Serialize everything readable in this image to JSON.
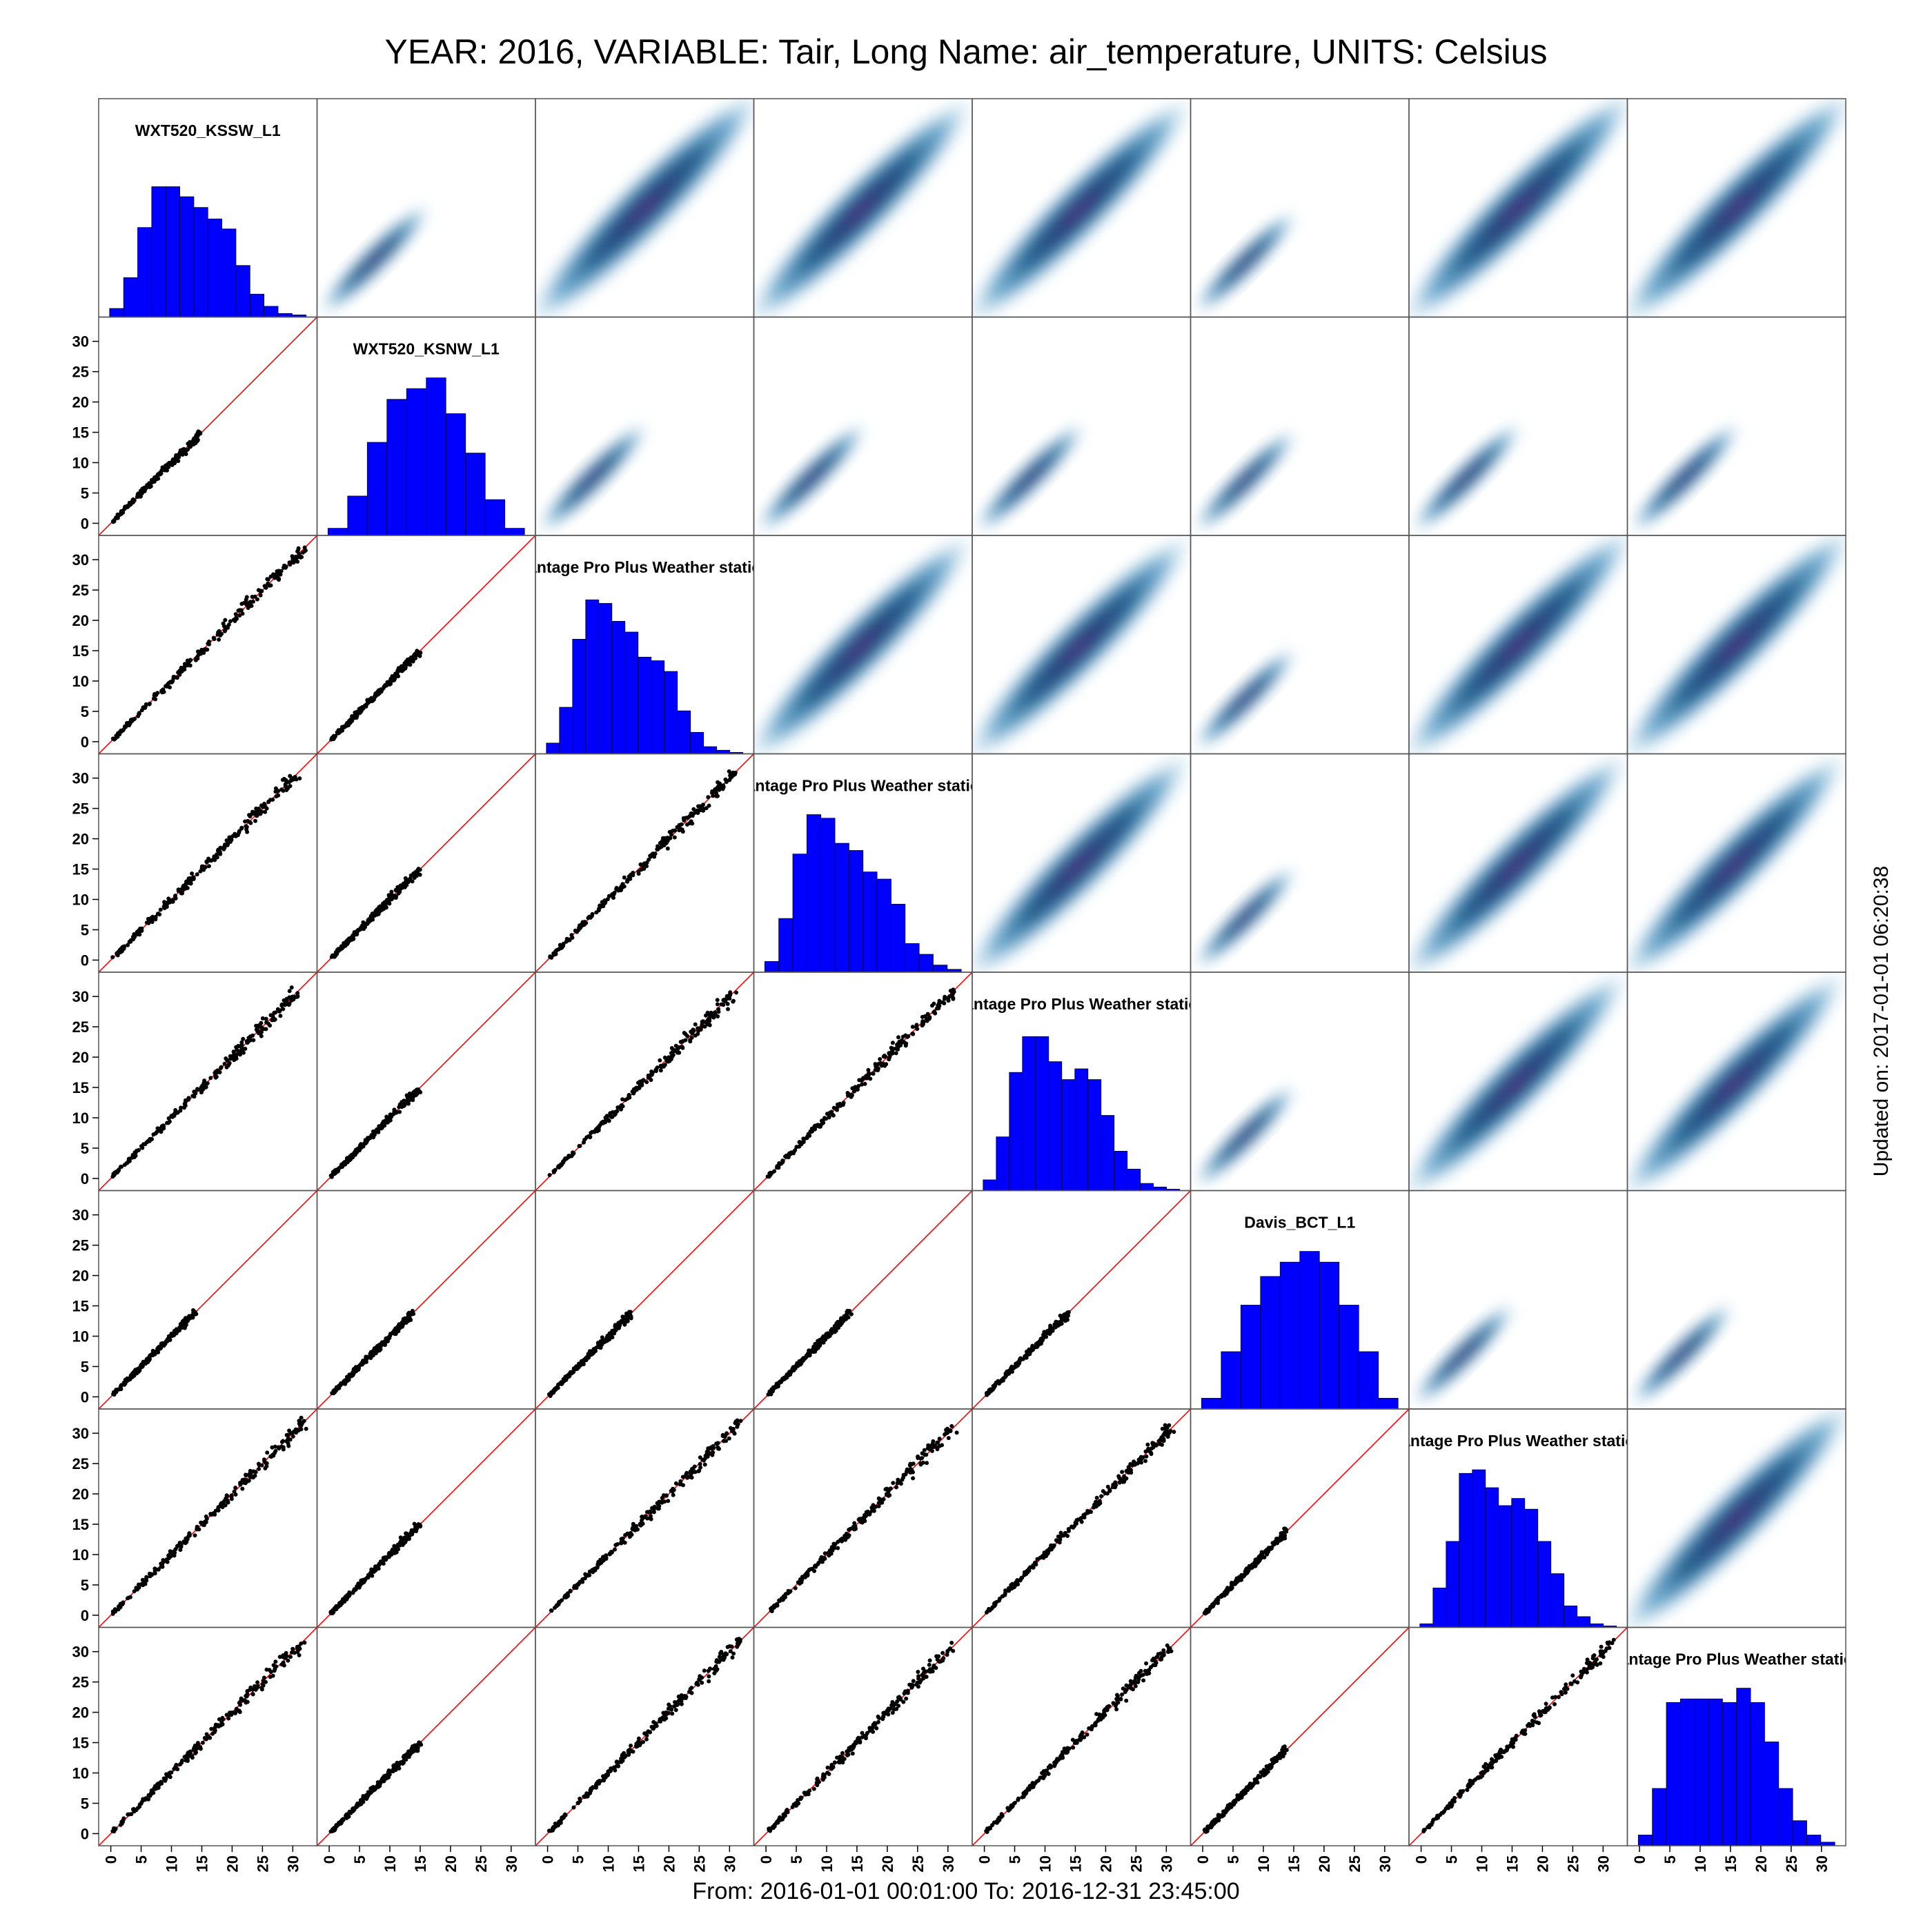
{
  "title": "YEAR: 2016, VARIABLE: Tair, Long Name: air_temperature, UNITS: Celsius",
  "footer": "From: 2016-01-01 00:01:00 To: 2016-12-31 23:45:00",
  "updated": "Updated on: 2017-01-01 06:20:38",
  "chart_data": {
    "type": "scatter",
    "subtype": "scatterplot-matrix",
    "upper_panels": "2d-density",
    "lower_panels": "scatter with 1:1 reference line",
    "diagonal_panels": "histogram",
    "colors": {
      "histogram": "#0000ff",
      "reference_line": "#ff0000",
      "points": "#000000",
      "density": "#1f4e79"
    },
    "axis_range": [
      -2,
      34
    ],
    "ticks": [
      0,
      5,
      10,
      15,
      20,
      25,
      30
    ],
    "variables": [
      {
        "name": "WXT520_KSSW_L1",
        "min": 0,
        "max": 32,
        "hist": [
          1.2,
          5.5,
          12.5,
          18.2,
          18.2,
          16.8,
          15.3,
          13.7,
          12.3,
          7.2,
          3.2,
          1.5,
          0.5,
          0.3
        ]
      },
      {
        "name": "WXT520_KSNW_L1",
        "min": 0,
        "max": 15,
        "hist": [
          1.0,
          5.5,
          13.0,
          19.0,
          20.5,
          22.0,
          17.0,
          11.5,
          5.0,
          1.0
        ]
      },
      {
        "name": "Vantage Pro Plus Weather station",
        "min": 0,
        "max": 32,
        "hist": [
          1.5,
          6.5,
          16.0,
          21.5,
          21.0,
          18.5,
          17.0,
          13.5,
          13.0,
          11.5,
          6.0,
          3.0,
          1.0,
          0.5,
          0.2
        ]
      },
      {
        "name": "Vantage Pro Plus Weather station",
        "min": 0,
        "max": 31,
        "hist": [
          1.5,
          7.5,
          16.5,
          22.0,
          21.5,
          18.0,
          17.0,
          14.0,
          13.0,
          9.5,
          4.0,
          2.5,
          1.0,
          0.4
        ]
      },
      {
        "name": "Vantage Pro Plus Weather station",
        "min": 0,
        "max": 31,
        "hist": [
          1.5,
          7.5,
          16.5,
          21.5,
          21.5,
          18.0,
          15.5,
          17.0,
          15.5,
          10.5,
          5.5,
          3.0,
          1.0,
          0.5,
          0.2
        ]
      },
      {
        "name": "Davis_BCT_L1",
        "min": 0,
        "max": 14,
        "hist": [
          1.5,
          8.0,
          14.5,
          18.5,
          20.5,
          22.0,
          20.5,
          14.5,
          8.0,
          1.5
        ]
      },
      {
        "name": "Vantage Pro Plus Weather station",
        "min": 0,
        "max": 32,
        "hist": [
          0.5,
          5.5,
          12.0,
          21.5,
          22.0,
          19.5,
          17.0,
          18.0,
          16.5,
          12.0,
          7.5,
          3.0,
          1.5,
          0.5,
          0.2
        ]
      },
      {
        "name": "Vantage Pro Plus Weather station",
        "min": 0,
        "max": 32,
        "hist": [
          1.5,
          8.0,
          20.0,
          20.5,
          20.5,
          20.5,
          20.0,
          22.0,
          20.0,
          14.5,
          8.0,
          3.5,
          1.5,
          0.5
        ]
      }
    ]
  }
}
